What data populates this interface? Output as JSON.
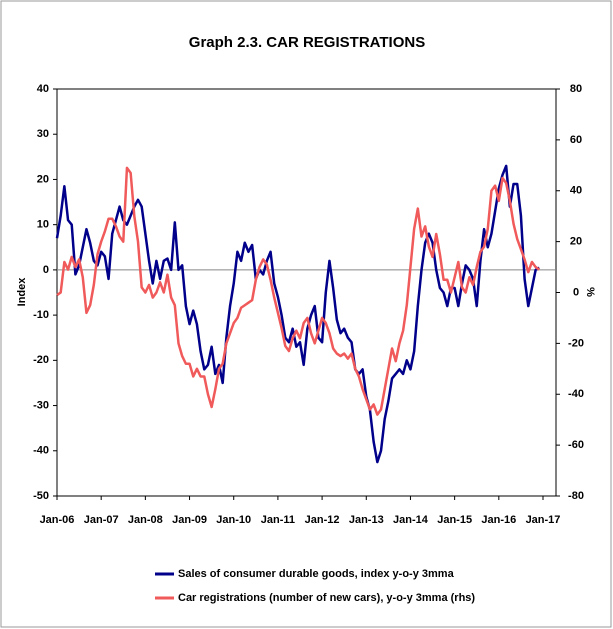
{
  "chart_data": {
    "type": "line",
    "title": "Graph 2.3. CAR REGISTRATIONS",
    "ylabel": "Index",
    "y2label": "%",
    "categories": [
      "Jan-06",
      null,
      null,
      null,
      null,
      null,
      null,
      null,
      null,
      null,
      null,
      null,
      "Jan-07",
      null,
      null,
      null,
      null,
      null,
      null,
      null,
      null,
      null,
      null,
      null,
      "Jan-08",
      null,
      null,
      null,
      null,
      null,
      null,
      null,
      null,
      null,
      null,
      null,
      "Jan-09",
      null,
      null,
      null,
      null,
      null,
      null,
      null,
      null,
      null,
      null,
      null,
      "Jan-10",
      null,
      null,
      null,
      null,
      null,
      null,
      null,
      null,
      null,
      null,
      null,
      "Jan-11",
      null,
      null,
      null,
      null,
      null,
      null,
      null,
      null,
      null,
      null,
      null,
      "Jan-12",
      null,
      null,
      null,
      null,
      null,
      null,
      null,
      null,
      null,
      null,
      null,
      "Jan-13",
      null,
      null,
      null,
      null,
      null,
      null,
      null,
      null,
      null,
      null,
      null,
      "Jan-14",
      null,
      null,
      null,
      null,
      null,
      null,
      null,
      null,
      null,
      null,
      null,
      "Jan-15",
      null,
      null,
      null,
      null,
      null,
      null,
      null,
      null,
      null,
      null,
      null,
      "Jan-16",
      null,
      null,
      null,
      null,
      null,
      null,
      null,
      null,
      null,
      null,
      null,
      "Jan-17"
    ],
    "series": [
      {
        "name": "Sales of consumer durable goods, index y-o-y 3mma",
        "color": "#00008b",
        "axis": "y",
        "values": [
          7,
          12,
          18.5,
          11,
          10,
          -1,
          1,
          5,
          9,
          6,
          2,
          1,
          4,
          3,
          -2,
          8,
          11,
          14,
          11,
          10,
          12,
          14,
          15.5,
          14,
          8,
          2,
          -3,
          2,
          -2,
          2,
          2.5,
          0,
          10.5,
          0,
          1,
          -8,
          -12,
          -9,
          -12,
          -18,
          -22,
          -21,
          -17,
          -23,
          -21,
          -25,
          -15,
          -8,
          -3,
          4,
          2,
          6,
          4,
          5.5,
          -2,
          0,
          -1,
          2,
          4,
          -3,
          -6,
          -10,
          -15,
          -16,
          -13,
          -17,
          -16,
          -21,
          -13,
          -10,
          -8,
          -15,
          -16,
          -5,
          2,
          -4,
          -11,
          -14,
          -13,
          -15,
          -16,
          -22,
          -23,
          -22,
          -28,
          -31,
          -38,
          -42.5,
          -40,
          -33,
          -29,
          -24,
          -23,
          -22,
          -23,
          -20,
          -22,
          -18,
          -8,
          0,
          6,
          8,
          6,
          0,
          -4,
          -5,
          -8,
          -4,
          -4,
          -8,
          -3,
          1,
          0,
          -2,
          -8,
          2,
          9,
          5,
          8,
          13,
          18,
          21,
          23,
          14,
          19,
          19,
          12,
          -2,
          -8,
          -4,
          0,
          0.5,
          null
        ]
      },
      {
        "name": "Car registrations (number of new cars), y-o-y 3mma (rhs)",
        "color": "#f05a5a",
        "axis": "y2",
        "values": [
          -1,
          0,
          12,
          9,
          14,
          10,
          13,
          6,
          -8,
          -5,
          3,
          15,
          20,
          24,
          29,
          29,
          26,
          22,
          20,
          49,
          47,
          30,
          20,
          2,
          0,
          3,
          -2,
          0,
          4,
          0,
          7,
          -2,
          -5,
          -20,
          -25,
          -28,
          -28,
          -33,
          -30,
          -33,
          -33,
          -40,
          -45,
          -38,
          -30,
          -28,
          -20,
          -16,
          -12,
          -10,
          -6,
          -5,
          -4,
          -3,
          5,
          10,
          13,
          11,
          5,
          -2,
          -8,
          -14,
          -21,
          -23,
          -18,
          -15,
          -18,
          -12,
          -10,
          -16,
          -20,
          -15,
          -10,
          -12,
          -16,
          -22,
          -24,
          -25,
          -24,
          -26,
          -24,
          -30,
          -33,
          -38,
          -42,
          -46,
          -44,
          -48,
          -46,
          -38,
          -30,
          -22,
          -27,
          -20,
          -15,
          -5,
          10,
          25,
          33,
          22,
          26,
          18,
          14,
          23,
          15,
          5,
          5,
          0,
          6,
          12,
          2,
          0,
          6,
          3,
          10,
          16,
          18,
          25,
          40,
          42,
          36,
          45,
          43,
          36,
          27,
          21,
          17,
          13,
          8,
          12,
          10,
          9,
          null
        ]
      }
    ],
    "ylim": [
      -50,
      40
    ],
    "yticks": [
      -50,
      -40,
      -30,
      -20,
      -10,
      0,
      10,
      20,
      30,
      40
    ],
    "y2lim": [
      -80,
      80
    ],
    "y2ticks": [
      -80,
      -60,
      -40,
      -20,
      0,
      20,
      40,
      60,
      80
    ],
    "zero_line": true,
    "legend": "bottom"
  }
}
